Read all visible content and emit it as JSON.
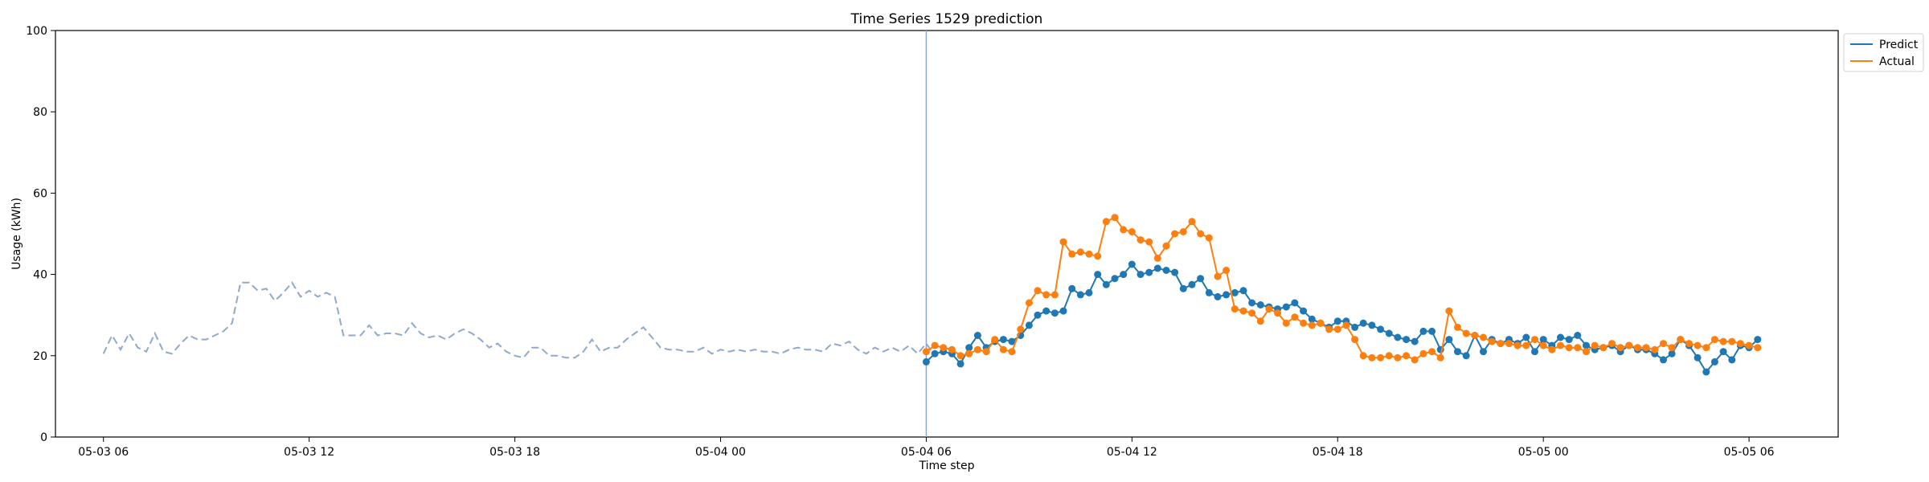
{
  "chart_data": {
    "type": "line",
    "title": "Time Series 1529 prediction",
    "xlabel": "Time step",
    "ylabel": "Usage (kWh)",
    "ylim": [
      0,
      100
    ],
    "yticks": [
      0,
      20,
      40,
      60,
      80,
      100
    ],
    "xlim_hours": [
      -1.4,
      50.6
    ],
    "xticks": [
      {
        "label": "05-03 06",
        "hour": 0
      },
      {
        "label": "05-03 12",
        "hour": 6
      },
      {
        "label": "05-03 18",
        "hour": 12
      },
      {
        "label": "05-04 00",
        "hour": 18
      },
      {
        "label": "05-04 06",
        "hour": 24
      },
      {
        "label": "05-04 12",
        "hour": 30
      },
      {
        "label": "05-04 18",
        "hour": 36
      },
      {
        "label": "05-05 00",
        "hour": 42
      },
      {
        "label": "05-05 06",
        "hour": 48
      }
    ],
    "x_start": "05-03 06:00",
    "x_step_minutes": 15,
    "forecast_start_hour": 24.0,
    "colors": {
      "history": "#8fa9cc",
      "predict": "#1f77b4",
      "actual": "#ff7f0e",
      "vline": "#8fa9cc"
    },
    "legend_position": "top-right outside",
    "legend": [
      {
        "label": "Predict",
        "color": "#1f77b4"
      },
      {
        "label": "Actual",
        "color": "#ff7f0e"
      }
    ],
    "history": {
      "start_hour": 0,
      "step_hours": 0.25,
      "values": [
        20.5,
        25,
        21.5,
        25.5,
        22,
        21,
        25.5,
        21,
        20.5,
        23,
        25,
        24,
        24,
        25,
        26,
        28,
        38,
        38,
        36,
        36.5,
        33.5,
        35.5,
        38,
        34.5,
        36,
        34.5,
        35.5,
        34.5,
        25,
        25,
        25,
        27.5,
        25,
        25.5,
        25.5,
        25,
        28,
        25.5,
        24.5,
        25,
        24,
        25.5,
        26.5,
        25.5,
        24,
        22,
        23,
        21,
        20,
        19.5,
        22,
        22,
        20,
        20,
        19.5,
        19.5,
        21,
        24,
        21,
        22,
        22,
        24,
        25.5,
        27,
        24.5,
        22,
        21.5,
        21.5,
        21,
        21,
        22,
        20.5,
        21.5,
        21,
        21.5,
        21,
        21.5,
        21,
        21,
        20.5,
        21.5,
        22,
        21.5,
        21.5,
        21,
        23,
        22.5,
        23.5,
        21.5,
        20.5,
        22,
        21,
        22,
        21,
        22.5,
        20.5,
        23,
        20,
        22,
        20
      ]
    },
    "series": [
      {
        "name": "Predict",
        "start_hour": 24.0,
        "step_hours": 0.25,
        "values": [
          18.5,
          20.5,
          21,
          20.5,
          18,
          22,
          25,
          22,
          23.5,
          24,
          23.5,
          25,
          27.5,
          30,
          31,
          30.5,
          31,
          36.5,
          35,
          35.5,
          40,
          37.5,
          39,
          40,
          42.5,
          40,
          40.5,
          41.5,
          41,
          40.5,
          36.5,
          37.5,
          39,
          35.5,
          34.5,
          35,
          35.5,
          36,
          33,
          32.5,
          32,
          31.5,
          32,
          33,
          31,
          29,
          28,
          27,
          28.5,
          28.5,
          27,
          28,
          27.5,
          26.5,
          25.5,
          24.5,
          24,
          23.5,
          26,
          26,
          21.5,
          24,
          21,
          20,
          25,
          21,
          24,
          23,
          24,
          23,
          24.5,
          21,
          24,
          22.5,
          24.5,
          24,
          25,
          22.5,
          21.5,
          22,
          22.5,
          21,
          22.5,
          21.5,
          21.5,
          20.5,
          19,
          20.5,
          24,
          22.5,
          19.5,
          16,
          18.5,
          21,
          19,
          22.5,
          22,
          24
        ]
      },
      {
        "name": "Actual",
        "start_hour": 24.0,
        "step_hours": 0.25,
        "values": [
          21,
          22.5,
          22,
          21.5,
          20,
          20.5,
          21.5,
          21,
          24,
          21.5,
          21,
          26.5,
          33,
          36,
          35,
          35,
          48,
          45,
          45.5,
          45,
          44.5,
          53,
          54,
          51,
          50.5,
          48.5,
          48,
          44,
          47,
          50,
          50.5,
          53,
          50,
          49,
          39.5,
          41,
          31.5,
          31,
          30.5,
          28.5,
          31.5,
          30.5,
          28,
          29.5,
          28,
          27.5,
          28,
          26.5,
          26.5,
          27.5,
          24,
          20,
          19.5,
          19.5,
          20,
          19.5,
          20,
          19,
          20.5,
          21,
          19.5,
          31,
          27,
          25.5,
          25,
          24.5,
          23.5,
          23,
          23,
          22.5,
          22.5,
          24,
          22.5,
          21.5,
          22.5,
          22,
          22,
          21,
          22.5,
          22,
          23,
          22,
          22.5,
          22,
          22,
          21.5,
          23,
          22,
          24,
          23,
          22.5,
          22,
          24,
          23.5,
          23.5,
          23,
          22.5,
          22
        ]
      }
    ]
  }
}
